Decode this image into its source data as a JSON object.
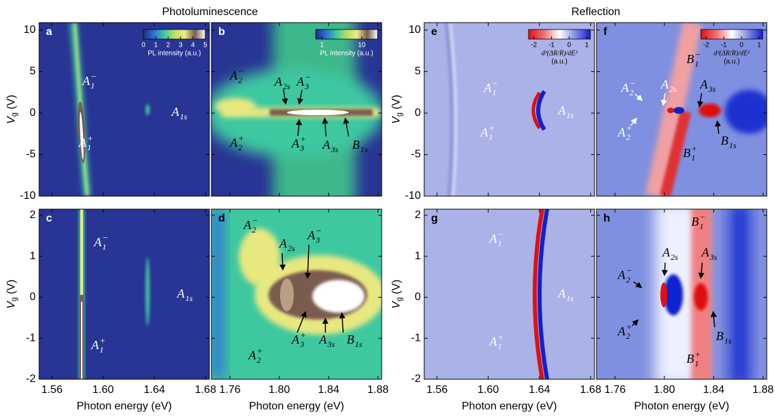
{
  "figure": {
    "titles": [
      "Photoluminescence",
      "Reflection"
    ]
  },
  "chart_data": [
    {
      "type": "heatmap",
      "panel": "a",
      "xlim": [
        1.55,
        1.683
      ],
      "xticks": [
        1.56,
        1.6,
        1.64,
        1.68
      ],
      "ylim": [
        -10,
        10.9
      ],
      "yticks": [
        10,
        5,
        0,
        -5,
        -10
      ],
      "ylabel": {
        "base": "V",
        "sub": "g",
        "rest": " (V)"
      },
      "colorbar": {
        "scale": "linear",
        "lim": [
          0,
          5
        ],
        "ticks": [
          0,
          1,
          2,
          3,
          4,
          5
        ],
        "label": [
          "PL intensity (a.u.)"
        ],
        "colormap": [
          "#1f2f86",
          "#2f6fd6",
          "#3ec8a0",
          "#b8e060",
          "#f0e88a",
          "#7a5c50",
          "#ffffff"
        ]
      },
      "annotations": [
        {
          "base": "A",
          "sub": "1",
          "sup": "−"
        },
        {
          "base": "A",
          "sub": "1",
          "sup": "+"
        },
        {
          "base": "A",
          "sub": "1s"
        }
      ]
    },
    {
      "type": "heatmap",
      "panel": "b",
      "xlim": [
        1.745,
        1.883
      ],
      "xticks": [
        1.76,
        1.8,
        1.84,
        1.88
      ],
      "ylim": [
        -10,
        10.9
      ],
      "yticks": [
        10,
        5,
        0,
        -5,
        -10
      ],
      "colorbar": {
        "scale": "log",
        "lim": [
          0.7,
          25
        ],
        "ticks": [
          1,
          10
        ],
        "label": [
          "PL intensity (a.u.)"
        ],
        "colormap": [
          "#1f2f86",
          "#2f6fd6",
          "#3ec8a0",
          "#b8e060",
          "#f0e88a",
          "#7a5c50",
          "#ffffff"
        ]
      },
      "annotations": [
        {
          "base": "A",
          "sub": "2",
          "sup": "−"
        },
        {
          "base": "A",
          "sub": "2s"
        },
        {
          "base": "A",
          "sub": "3",
          "sup": "−"
        },
        {
          "base": "A",
          "sub": "2",
          "sup": "+"
        },
        {
          "base": "A",
          "sub": "3",
          "sup": "+"
        },
        {
          "base": "A",
          "sub": "3s"
        },
        {
          "base": "B",
          "sub": "1s"
        }
      ]
    },
    {
      "type": "heatmap",
      "panel": "c",
      "xlim": [
        1.55,
        1.683
      ],
      "xticks": [
        1.56,
        {
          "value": 1.6,
          "label": "1.60"
        },
        1.64,
        1.68
      ],
      "ylim": [
        -2,
        2.15
      ],
      "yticks": [
        2,
        1,
        0,
        -1,
        -2
      ],
      "xlabel": "Photon energy (eV)",
      "ylabel": {
        "base": "V",
        "sub": "g",
        "rest": " (V)"
      },
      "annotations": [
        {
          "base": "A",
          "sub": "1",
          "sup": "−"
        },
        {
          "base": "A",
          "sub": "1s"
        },
        {
          "base": "A",
          "sub": "1",
          "sup": "+"
        }
      ]
    },
    {
      "type": "heatmap",
      "panel": "d",
      "xlim": [
        1.745,
        1.883
      ],
      "xticks": [
        1.76,
        {
          "value": 1.8,
          "label": "1.80"
        },
        1.84,
        1.88
      ],
      "ylim": [
        -2,
        2.15
      ],
      "yticks": [
        2,
        1,
        0,
        -1,
        -2
      ],
      "xlabel": "Photon energy (eV)",
      "annotations": [
        {
          "base": "A",
          "sub": "2",
          "sup": "−"
        },
        {
          "base": "A",
          "sub": "2s"
        },
        {
          "base": "A",
          "sub": "3",
          "sup": "−"
        },
        {
          "base": "A",
          "sub": "3",
          "sup": "+"
        },
        {
          "base": "A",
          "sub": "3s"
        },
        {
          "base": "B",
          "sub": "1s"
        },
        {
          "base": "A",
          "sub": "2",
          "sup": "+"
        }
      ]
    },
    {
      "type": "heatmap",
      "panel": "e",
      "xlim": [
        1.55,
        1.683
      ],
      "xticks": [
        1.56,
        1.6,
        1.64,
        1.68
      ],
      "ylim": [
        -10,
        10.9
      ],
      "yticks": [
        10,
        5,
        0,
        -5,
        -10
      ],
      "ylabel": {
        "base": "V",
        "sub": "g",
        "rest": " (V)"
      },
      "colorbar": {
        "scale": "linear",
        "lim": [
          -2.3,
          1.2
        ],
        "ticks": [
          -2,
          -1,
          0,
          1
        ],
        "label": [
          "d²(ΔR/R)/dE²",
          "(a.u.)"
        ],
        "colormap": [
          "#e01010",
          "#f07070",
          "#ffffff",
          "#8890e0",
          "#1020d0"
        ]
      },
      "annotations": [
        {
          "base": "A",
          "sub": "1",
          "sup": "−"
        },
        {
          "base": "A",
          "sub": "1s"
        },
        {
          "base": "A",
          "sub": "1",
          "sup": "+"
        }
      ]
    },
    {
      "type": "heatmap",
      "panel": "f",
      "xlim": [
        1.745,
        1.883
      ],
      "xticks": [
        1.76,
        1.8,
        1.84,
        1.88
      ],
      "ylim": [
        -10,
        10.9
      ],
      "yticks": [
        10,
        5,
        0,
        -5,
        -10
      ],
      "colorbar": {
        "scale": "linear",
        "lim": [
          -2.3,
          1.2
        ],
        "ticks": [
          -2,
          -1,
          0,
          1
        ],
        "label": [
          "d²(ΔR/R)/dE²",
          "(a.u.)"
        ],
        "colormap": [
          "#e01010",
          "#f07070",
          "#ffffff",
          "#8890e0",
          "#1020d0"
        ]
      },
      "annotations": [
        {
          "base": "B",
          "sub": "1",
          "sup": "−"
        },
        {
          "base": "A",
          "sub": "2",
          "sup": "−"
        },
        {
          "base": "A",
          "sub": "2s"
        },
        {
          "base": "A",
          "sub": "3s"
        },
        {
          "base": "A",
          "sub": "2",
          "sup": "+"
        },
        {
          "base": "B",
          "sub": "1s"
        },
        {
          "base": "B",
          "sub": "1",
          "sup": "+"
        }
      ]
    },
    {
      "type": "heatmap",
      "panel": "g",
      "xlim": [
        1.55,
        1.683
      ],
      "xticks": [
        1.56,
        {
          "value": 1.6,
          "label": "1.60"
        },
        1.64,
        1.68
      ],
      "ylim": [
        -2,
        2.15
      ],
      "yticks": [
        2,
        1,
        0,
        -1,
        -2
      ],
      "xlabel": "Photon energy (eV)",
      "ylabel": {
        "base": "V",
        "sub": "g",
        "rest": " (V)"
      },
      "annotations": [
        {
          "base": "A",
          "sub": "1",
          "sup": "−"
        },
        {
          "base": "A",
          "sub": "1s"
        },
        {
          "base": "A",
          "sub": "1",
          "sup": "+"
        }
      ]
    },
    {
      "type": "heatmap",
      "panel": "h",
      "xlim": [
        1.745,
        1.883
      ],
      "xticks": [
        1.76,
        {
          "value": 1.8,
          "label": "1.80"
        },
        1.84,
        1.88
      ],
      "ylim": [
        -2,
        2.15
      ],
      "yticks": [
        2,
        1,
        0,
        -1,
        -2
      ],
      "xlabel": "Photon energy (eV)",
      "annotations": [
        {
          "base": "B",
          "sub": "1",
          "sup": "−"
        },
        {
          "base": "A",
          "sub": "2",
          "sup": "−"
        },
        {
          "base": "A",
          "sub": "2s"
        },
        {
          "base": "A",
          "sub": "3s"
        },
        {
          "base": "B",
          "sub": "1s"
        },
        {
          "base": "A",
          "sub": "2",
          "sup": "+"
        },
        {
          "base": "B",
          "sub": "1",
          "sup": "+"
        }
      ]
    }
  ]
}
